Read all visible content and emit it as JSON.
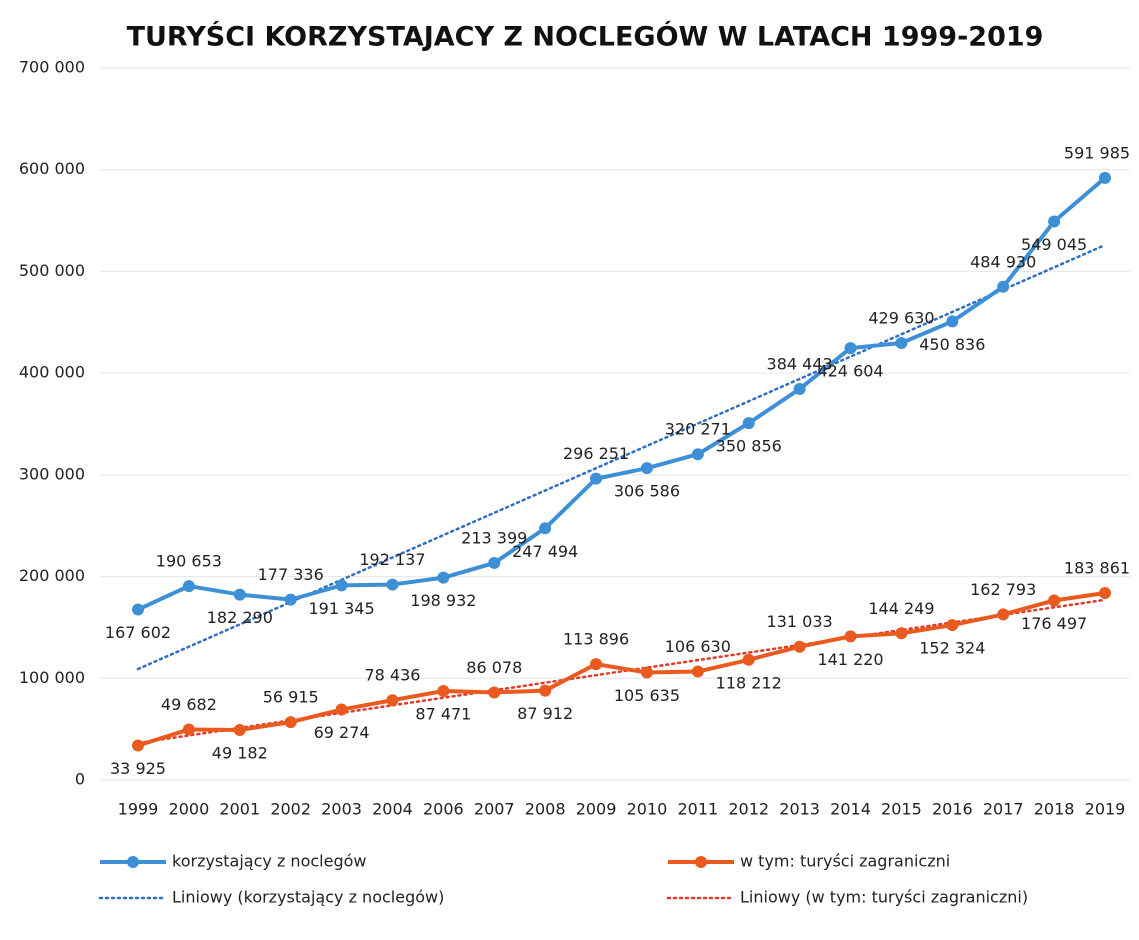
{
  "chart_data": {
    "type": "line",
    "title": "TURYŚCI KORZYSTAJACY Z NOCLEGÓW W LATACH 1999-2019",
    "categories": [
      "1999",
      "2000",
      "2001",
      "2002",
      "2003",
      "2004",
      "2006",
      "2007",
      "2008",
      "2009",
      "2010",
      "2011",
      "2012",
      "2013",
      "2014",
      "2015",
      "2016",
      "2017",
      "2018",
      "2019"
    ],
    "series": [
      {
        "name": "korzystający z noclegów",
        "color": "#3d8fd6",
        "values": [
          167602,
          190653,
          182290,
          177336,
          191345,
          192137,
          198932,
          213399,
          247494,
          296251,
          306586,
          320271,
          350856,
          384443,
          424604,
          429630,
          450836,
          484930,
          549045,
          591985
        ],
        "value_labels": [
          "167 602",
          "190 653",
          "182 290",
          "177 336",
          "191 345",
          "192 137",
          "198 932",
          "213 399",
          "247 494",
          "296 251",
          "306 586",
          "320 271",
          "350 856",
          "384 443",
          "424 604",
          "429 630",
          "450 836",
          "484 930",
          "549 045",
          "591 985"
        ]
      },
      {
        "name": "w tym: turyści zagraniczni",
        "color": "#ea5a1e",
        "values": [
          33925,
          49682,
          49182,
          56915,
          69274,
          78436,
          87471,
          86078,
          87912,
          113896,
          105635,
          106630,
          118212,
          131033,
          141220,
          144249,
          152324,
          162793,
          176497,
          183861
        ],
        "value_labels": [
          "33 925",
          "49 682",
          "49 182",
          "56 915",
          "69 274",
          "78 436",
          "87 471",
          "86 078",
          "87 912",
          "113 896",
          "105 635",
          "106 630",
          "118 212",
          "131 033",
          "141 220",
          "144 249",
          "152 324",
          "162 793",
          "176 497",
          "183 861"
        ]
      }
    ],
    "trendlines": [
      {
        "name": "Liniowy (korzystający z noclegów)",
        "color": "#2f6fc2",
        "series": 0
      },
      {
        "name": "Liniowy (w tym: turyści zagraniczni)",
        "color": "#e03a2a",
        "series": 1
      }
    ],
    "ylim": [
      0,
      700000
    ],
    "yticks": [
      0,
      {
        "value": 100000,
        "label": "100 000"
      },
      {
        "value": 200000,
        "label": "200 000"
      },
      {
        "value": 300000,
        "label": "300 000"
      },
      {
        "value": 400000,
        "label": "400 000"
      },
      {
        "value": 500000,
        "label": "500 000"
      },
      {
        "value": 600000,
        "label": "600 000"
      },
      {
        "value": 700000,
        "label": "700 000"
      }
    ],
    "grid": true
  }
}
